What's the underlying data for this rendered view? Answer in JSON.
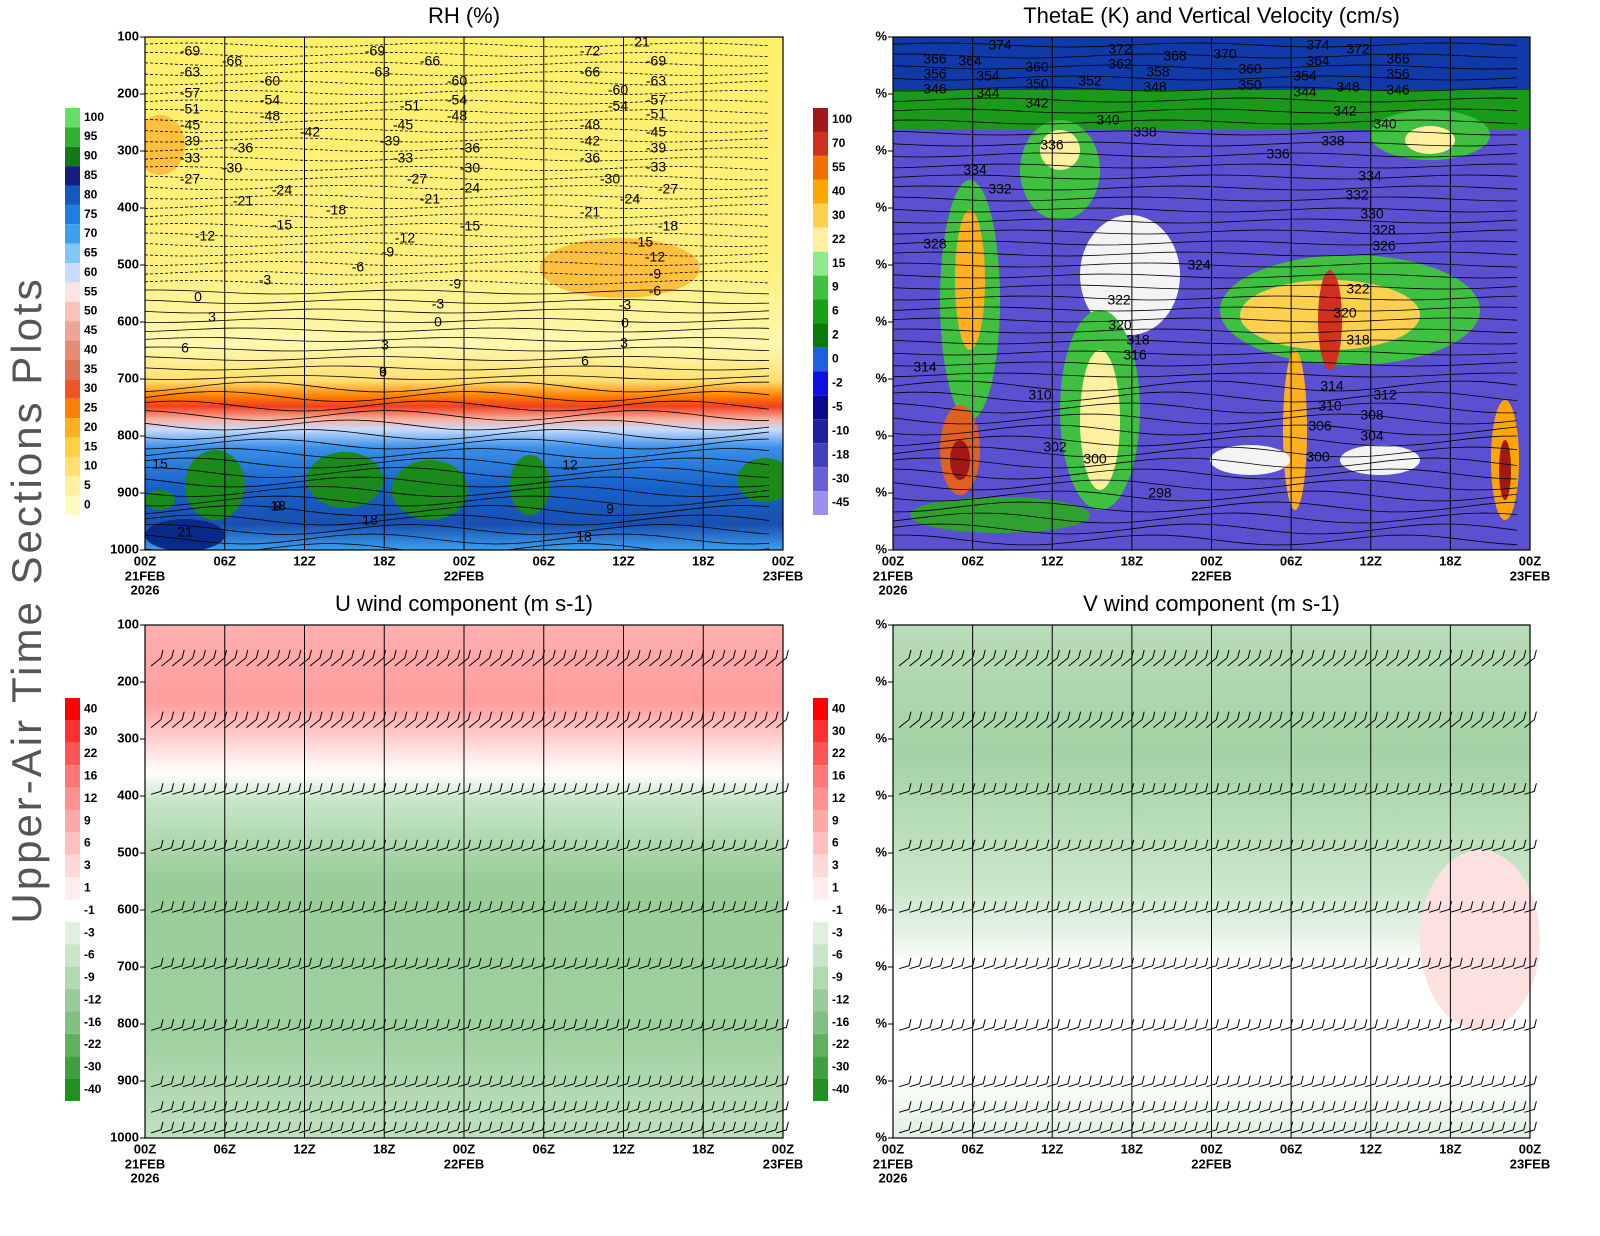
{
  "page_title": "Upper-Air Time Sections Plots",
  "chart_data": [
    {
      "type": "contour",
      "title": "RH (%)",
      "categories": [
        "00Z",
        "06Z",
        "12Z",
        "18Z",
        "00Z",
        "06Z",
        "12Z",
        "18Z",
        "00Z"
      ],
      "date_labels": [
        "21FEB",
        "22FEB",
        "23FEB"
      ],
      "year_label": "2026",
      "ylim": [
        1000,
        100
      ],
      "yticks": [
        100,
        200,
        300,
        400,
        500,
        600,
        700,
        800,
        900,
        1000
      ],
      "grid": true,
      "colorbar": {
        "levels": [
          100,
          95,
          90,
          85,
          80,
          75,
          70,
          65,
          60,
          55,
          50,
          45,
          40,
          35,
          30,
          25,
          20,
          15,
          10,
          5,
          0
        ],
        "colors": [
          "#66dd66",
          "#30b030",
          "#137a13",
          "#14207f",
          "#1458c0",
          "#1e7fe0",
          "#3aa0f0",
          "#80c8f8",
          "#c8dcff",
          "#fde4e4",
          "#f8c4b8",
          "#f0a494",
          "#e88a74",
          "#e07256",
          "#ef5424",
          "#ff8000",
          "#ffb020",
          "#ffd040",
          "#ffe070",
          "#fff0a0",
          "#fffac0"
        ]
      },
      "contour_labels": [
        -69,
        -66,
        -63,
        -60,
        -57,
        -54,
        -51,
        -48,
        -45,
        -42,
        -39,
        -36,
        -33,
        -30,
        -27,
        -24,
        -21,
        -18,
        -15,
        -12,
        -9,
        -6,
        -3,
        0,
        3,
        6,
        9,
        15,
        18,
        21,
        12,
        -69,
        -63,
        -66,
        -60,
        -54,
        -51,
        -48,
        -45,
        -39,
        -36,
        -33,
        -30,
        -27,
        -24,
        -21,
        -15,
        -12,
        -9,
        -3,
        0,
        3,
        6,
        9,
        18,
        21,
        -72,
        -69,
        -66,
        -63,
        -60,
        -57,
        -54,
        -51,
        -48,
        -45,
        -42,
        -39,
        -36,
        -33,
        -30,
        -27,
        -24,
        -21,
        -18,
        -15,
        -12,
        -9,
        -6,
        -3,
        0,
        3,
        6,
        9,
        18,
        21
      ]
    },
    {
      "type": "contour",
      "title": "ThetaE (K) and Vertical Velocity (cm/s)",
      "categories": [
        "00Z",
        "06Z",
        "12Z",
        "18Z",
        "00Z",
        "06Z",
        "12Z",
        "18Z",
        "00Z"
      ],
      "date_labels": [
        "21FEB",
        "22FEB",
        "23FEB"
      ],
      "year_label": "2026",
      "ylim": [
        1000,
        100
      ],
      "yticks": [
        {
          "value": 100,
          "label": "%"
        },
        {
          "value": 200,
          "label": "%"
        },
        {
          "value": 300,
          "label": "%"
        },
        {
          "value": 400,
          "label": "%"
        },
        {
          "value": 500,
          "label": "%"
        },
        {
          "value": 600,
          "label": "%"
        },
        {
          "value": 700,
          "label": "%"
        },
        {
          "value": 800,
          "label": "%"
        },
        {
          "value": 900,
          "label": "%"
        },
        {
          "value": 1000,
          "label": "%"
        }
      ],
      "grid": true,
      "colorbar": {
        "levels": [
          100,
          70,
          55,
          40,
          30,
          22,
          15,
          9,
          6,
          2,
          0,
          -2,
          -5,
          -10,
          -18,
          -30,
          -45
        ],
        "colors": [
          "#a01818",
          "#d03020",
          "#f07000",
          "#ffa500",
          "#ffd050",
          "#fff0a0",
          "#90e890",
          "#40c040",
          "#18a018",
          "#0a7a0a",
          "#2060e0",
          "#1010e0",
          "#0a0a90",
          "#2020a0",
          "#4040c0",
          "#6a60d8",
          "#9a90f0"
        ]
      },
      "contour_labels": [
        374,
        366,
        364,
        360,
        356,
        354,
        350,
        346,
        344,
        342,
        340,
        338,
        336,
        334,
        332,
        328,
        324,
        322,
        320,
        318,
        316,
        314,
        310,
        302,
        300,
        298,
        372,
        368,
        370,
        362,
        358,
        352,
        348,
        374,
        372,
        364,
        360,
        366,
        356,
        354,
        350,
        344,
        348,
        346,
        342,
        340,
        338,
        336,
        334,
        332,
        330,
        328,
        326,
        322,
        320,
        318,
        314,
        312,
        310,
        308,
        306,
        304,
        300
      ]
    },
    {
      "type": "contour",
      "title": "U wind component (m s-1)",
      "categories": [
        "00Z",
        "06Z",
        "12Z",
        "18Z",
        "00Z",
        "06Z",
        "12Z",
        "18Z",
        "00Z"
      ],
      "date_labels": [
        "21FEB",
        "22FEB",
        "23FEB"
      ],
      "year_label": "2026",
      "ylim": [
        1000,
        100
      ],
      "yticks": [
        100,
        200,
        300,
        400,
        500,
        600,
        700,
        800,
        900,
        1000
      ],
      "grid": true,
      "colorbar": {
        "levels": [
          40,
          30,
          22,
          16,
          12,
          9,
          6,
          3,
          1,
          -1,
          -3,
          -6,
          -9,
          -12,
          -16,
          -22,
          -30,
          -40
        ],
        "colors": [
          "#ff0000",
          "#ff3030",
          "#ff5555",
          "#ff7777",
          "#ff9090",
          "#ffa8a8",
          "#ffc0c0",
          "#ffd8d8",
          "#ffecec",
          "#ffffff",
          "#e0f0e0",
          "#c8e6c8",
          "#b0dab0",
          "#98cc98",
          "#80c080",
          "#60b060",
          "#40a040",
          "#209020"
        ]
      }
    },
    {
      "type": "contour",
      "title": "V wind component (m s-1)",
      "categories": [
        "00Z",
        "06Z",
        "12Z",
        "18Z",
        "00Z",
        "06Z",
        "12Z",
        "18Z",
        "00Z"
      ],
      "date_labels": [
        "21FEB",
        "22FEB",
        "23FEB"
      ],
      "year_label": "2026",
      "ylim": [
        1000,
        100
      ],
      "yticks": [
        {
          "value": 100,
          "label": "%"
        },
        {
          "value": 200,
          "label": "%"
        },
        {
          "value": 300,
          "label": "%"
        },
        {
          "value": 400,
          "label": "%"
        },
        {
          "value": 500,
          "label": "%"
        },
        {
          "value": 600,
          "label": "%"
        },
        {
          "value": 700,
          "label": "%"
        },
        {
          "value": 800,
          "label": "%"
        },
        {
          "value": 900,
          "label": "%"
        },
        {
          "value": 1000,
          "label": "%"
        }
      ],
      "grid": true,
      "colorbar": {
        "levels": [
          40,
          30,
          22,
          16,
          12,
          9,
          6,
          3,
          1,
          -1,
          -3,
          -6,
          -9,
          -12,
          -16,
          -22,
          -30,
          -40
        ],
        "colors": [
          "#ff0000",
          "#ff3030",
          "#ff5555",
          "#ff7777",
          "#ff9090",
          "#ffa8a8",
          "#ffc0c0",
          "#ffd8d8",
          "#ffecec",
          "#ffffff",
          "#e0f0e0",
          "#c8e6c8",
          "#b0dab0",
          "#98cc98",
          "#80c080",
          "#60b060",
          "#40a040",
          "#209020"
        ]
      }
    }
  ]
}
